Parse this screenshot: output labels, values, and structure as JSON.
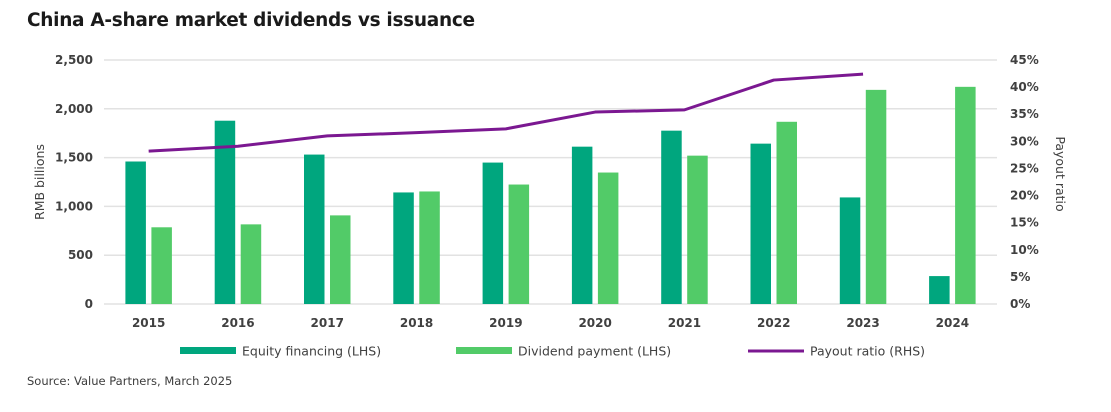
{
  "title": "China A-share market dividends vs issuance",
  "source": "Source: Value Partners, March 2025",
  "colors": {
    "equity": "#00A67E",
    "dividend": "#52CB68",
    "payout": "#7B1891",
    "grid": "#e2e2e2"
  },
  "chart_data": {
    "type": "bar",
    "title": "China A-share market dividends vs issuance",
    "categories": [
      "2015",
      "2016",
      "2017",
      "2018",
      "2019",
      "2020",
      "2021",
      "2022",
      "2023",
      "2024"
    ],
    "series": [
      {
        "name": "Equity financing (LHS)",
        "type": "bar",
        "axis": "left",
        "values": [
          1460,
          1878,
          1531,
          1143,
          1449,
          1612,
          1776,
          1643,
          1092,
          286
        ]
      },
      {
        "name": "Dividend payment (LHS)",
        "type": "bar",
        "axis": "left",
        "values": [
          786,
          816,
          908,
          1153,
          1224,
          1347,
          1520,
          1867,
          2194,
          2225
        ]
      },
      {
        "name": "Payout ratio (RHS)",
        "type": "line",
        "axis": "right",
        "values": [
          28.2,
          29.1,
          31.0,
          31.6,
          32.3,
          35.4,
          35.8,
          41.3,
          42.4,
          null
        ]
      }
    ],
    "xlabel": "",
    "ylabel": "RMB billions",
    "ylabel_right": "Payout ratio",
    "ylim": [
      0,
      2500
    ],
    "yticks": [
      "0",
      "500",
      "1,000",
      "1,500",
      "2,000",
      "2,500"
    ],
    "ylim_right": [
      0,
      45
    ],
    "yticks_right": [
      "0%",
      "5%",
      "10%",
      "15%",
      "20%",
      "25%",
      "30%",
      "35%",
      "40%",
      "45%"
    ],
    "grid": true,
    "legend": "bottom"
  }
}
